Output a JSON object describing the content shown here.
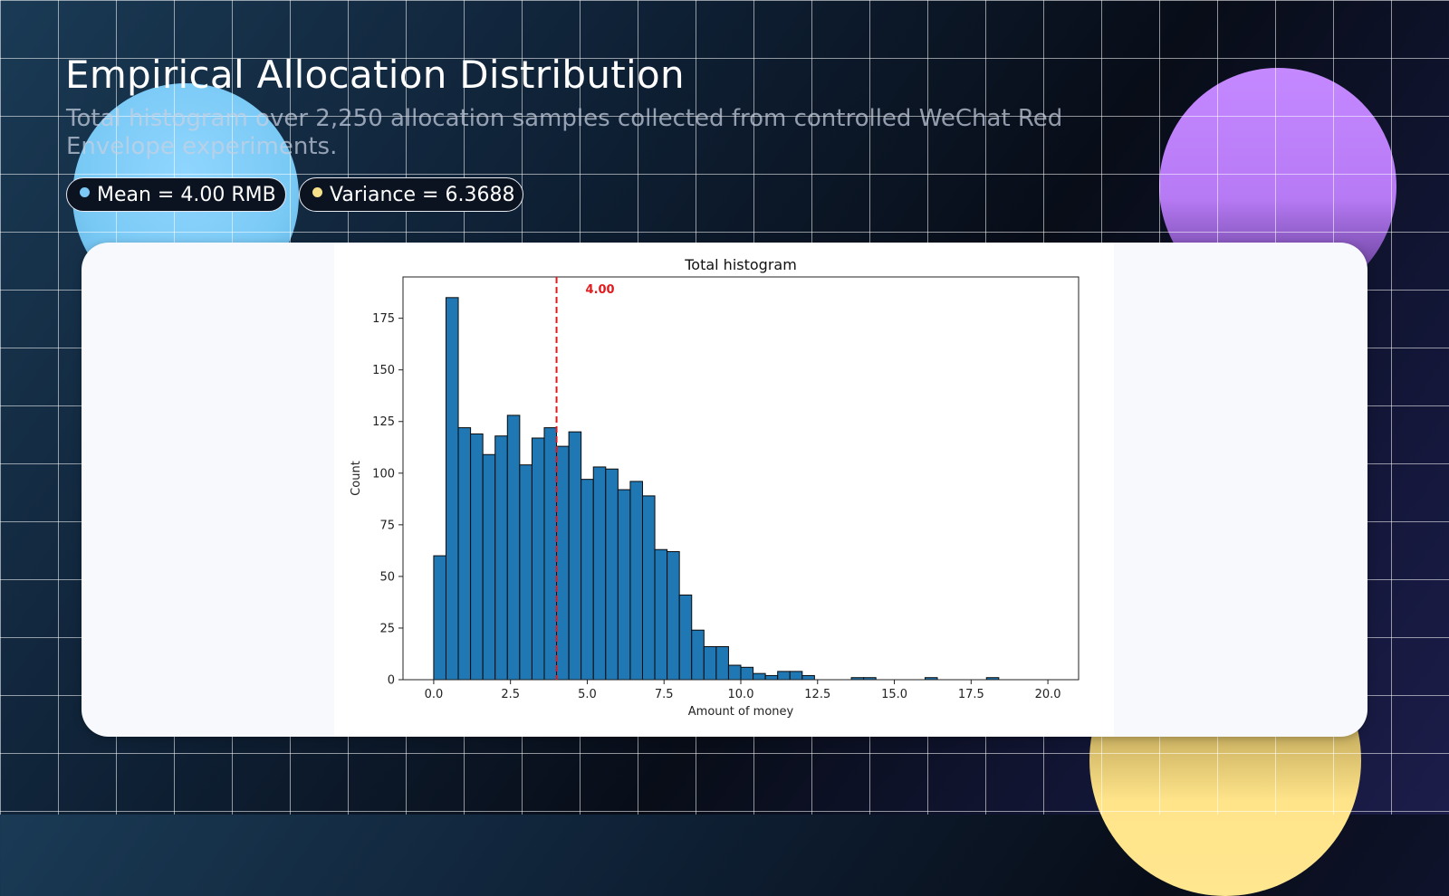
{
  "header": {
    "title": "Empirical Allocation Distribution",
    "subtitle": "Total histogram over 2,250 allocation samples collected from controlled WeChat Red Envelope experiments."
  },
  "badges": {
    "mean": {
      "label": "Mean = 4.00 RMB",
      "dot_color": "#7cc8f6"
    },
    "variance": {
      "label": "Variance = 6.3688",
      "dot_color": "#f6e08a"
    }
  },
  "colors": {
    "bar_fill": "#1f77b4",
    "bar_edge": "#0a0a0a",
    "mean_line": "#e31a1c"
  },
  "chart_data": {
    "type": "bar",
    "title": "Total histogram",
    "xlabel": "Amount of money",
    "ylabel": "Count",
    "xlim": [
      -1,
      21
    ],
    "ylim": [
      0,
      195
    ],
    "xticks": [
      0,
      2.5,
      5,
      7.5,
      10,
      12.5,
      15,
      17.5,
      20
    ],
    "xtick_labels": [
      "0.0",
      "2.5",
      "5.0",
      "7.5",
      "10.0",
      "12.5",
      "15.0",
      "17.5",
      "20.0"
    ],
    "yticks": [
      0,
      25,
      50,
      75,
      100,
      125,
      150,
      175
    ],
    "yticks_labels": [
      "0",
      "25",
      "50",
      "75",
      "100",
      "125",
      "150",
      "175"
    ],
    "bin_start": 0,
    "bin_width": 0.4,
    "counts": [
      60,
      185,
      122,
      119,
      109,
      118,
      128,
      104,
      117,
      122,
      113,
      120,
      97,
      103,
      102,
      92,
      96,
      89,
      63,
      62,
      41,
      24,
      16,
      16,
      7,
      6,
      3,
      2,
      4,
      4,
      2,
      0,
      0,
      0,
      1,
      1,
      0,
      0,
      0,
      0,
      1,
      0,
      0,
      0,
      0,
      1,
      0,
      0,
      0,
      0
    ],
    "mean_line": {
      "x": 4.0,
      "label": "4.00"
    },
    "grid": false,
    "legend": "none"
  }
}
